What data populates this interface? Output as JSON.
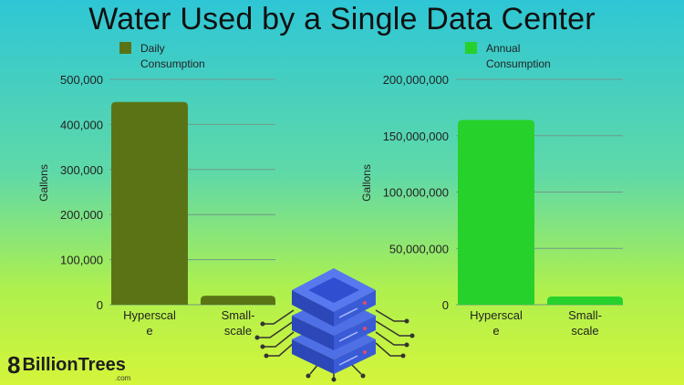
{
  "title": "Water Used by a Single Data Center",
  "logo": {
    "mark": "8",
    "name": "BillionTrees",
    "suffix": ".com"
  },
  "colors": {
    "daily": "#5a7415",
    "annual": "#27d12c",
    "grid": "#6f9a8a"
  },
  "chart_data": [
    {
      "type": "bar",
      "categories": [
        "Hyperscale",
        "Small-scale"
      ],
      "category_display": [
        [
          "Hyperscal",
          "e"
        ],
        [
          "Small-",
          "scale"
        ]
      ],
      "series": [
        {
          "name": "Daily Consumption",
          "values": [
            450000,
            20000
          ]
        }
      ],
      "legend_lines": [
        "Daily",
        "Consumption"
      ],
      "ylabel": "Gallons",
      "ylim": [
        0,
        500000
      ],
      "yticks": [
        0,
        100000,
        200000,
        300000,
        400000,
        500000
      ],
      "ytick_labels": [
        "0",
        "100,000",
        "200,000",
        "300,000",
        "400,000",
        "500,000"
      ],
      "grid": true,
      "legend_position": "top-left"
    },
    {
      "type": "bar",
      "categories": [
        "Hyperscale",
        "Small-scale"
      ],
      "category_display": [
        [
          "Hyperscal",
          "e"
        ],
        [
          "Small-",
          "scale"
        ]
      ],
      "series": [
        {
          "name": "Annual Consumption",
          "values": [
            164000000,
            7300000
          ]
        }
      ],
      "legend_lines": [
        "Annual",
        "Consumption"
      ],
      "ylabel": "Gallons",
      "ylim": [
        0,
        200000000
      ],
      "yticks": [
        0,
        50000000,
        100000000,
        150000000,
        200000000
      ],
      "ytick_labels": [
        "0",
        "50,000,000",
        "100,000,000",
        "150,000,000",
        "200,000,000"
      ],
      "grid": true,
      "legend_position": "top-left"
    }
  ]
}
